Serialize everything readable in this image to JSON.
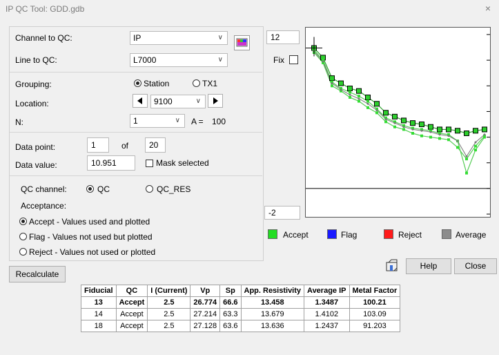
{
  "window": {
    "title": "IP QC Tool: GDD.gdb",
    "close_glyph": "×"
  },
  "channel": {
    "label": "Channel to QC:",
    "value": "IP"
  },
  "line": {
    "label": "Line to QC:",
    "value": "L7000"
  },
  "grouping": {
    "label": "Grouping:",
    "options": [
      "Station",
      "TX1"
    ],
    "selected": "Station"
  },
  "location": {
    "label": "Location:",
    "value": "9100"
  },
  "n": {
    "label": "N:",
    "value": "1",
    "a_text": "A =",
    "a_value": "100"
  },
  "data_point": {
    "label": "Data point:",
    "value": "1",
    "of_text": "of",
    "total": "20"
  },
  "data_value": {
    "label": "Data value:",
    "value": "10.951",
    "mask_label": "Mask selected"
  },
  "qc_channel": {
    "label": "QC channel:",
    "options": [
      "QC",
      "QC_RES"
    ],
    "selected": "QC"
  },
  "acceptance": {
    "label": "Acceptance:",
    "options": [
      "Accept - Values used and plotted",
      "Flag - Values not used but plotted",
      "Reject - Values not used or plotted"
    ],
    "selected": 0
  },
  "buttons": {
    "recalculate": "Recalculate",
    "help": "Help",
    "close": "Close"
  },
  "chart": {
    "ymax_value": "12",
    "ymin_value": "-2",
    "fix_label": "Fix"
  },
  "legend": [
    {
      "label": "Accept",
      "color": "#22dd22"
    },
    {
      "label": "Flag",
      "color": "#1a1aff"
    },
    {
      "label": "Reject",
      "color": "#ff1a1a"
    },
    {
      "label": "Average",
      "color": "#8c8c8c"
    }
  ],
  "table": {
    "headers": [
      "Fiducial",
      "QC",
      "I (Current)",
      "Vp",
      "Sp",
      "App. Resistivity",
      "Average IP",
      "Metal Factor"
    ],
    "rows": [
      [
        "13",
        "Accept",
        "2.5",
        "26.774",
        "66.6",
        "13.458",
        "1.3487",
        "100.21"
      ],
      [
        "14",
        "Accept",
        "2.5",
        "27.214",
        "63.3",
        "13.679",
        "1.4102",
        "103.09"
      ],
      [
        "18",
        "Accept",
        "2.5",
        "27.128",
        "63.6",
        "13.636",
        "1.2437",
        "91.203"
      ]
    ]
  },
  "chart_data": {
    "type": "line",
    "ylim": [
      -2,
      12
    ],
    "series": [
      {
        "values": [
          10.95,
          10.2,
          8.6,
          8.2,
          7.8,
          7.6,
          7.1,
          6.6,
          5.9,
          5.6,
          5.3,
          5.1,
          5.0,
          4.8,
          4.6,
          4.6,
          4.5,
          4.3,
          4.5,
          4.6
        ]
      },
      {
        "values": [
          10.8,
          10.0,
          8.3,
          7.8,
          7.5,
          7.2,
          6.8,
          6.2,
          5.5,
          5.2,
          4.9,
          4.7,
          4.6,
          4.5,
          4.3,
          4.2,
          3.7,
          1.2,
          3.0,
          4.0
        ]
      },
      {
        "values": [
          10.6,
          9.8,
          8.0,
          7.6,
          7.1,
          6.8,
          6.3,
          5.9,
          5.2,
          4.8,
          4.6,
          4.3,
          4.1,
          4.0,
          3.9,
          3.8,
          3.2,
          2.3,
          3.3,
          4.1
        ]
      },
      {
        "values": [
          10.7,
          9.9,
          8.2,
          7.7,
          7.3,
          7.0,
          6.6,
          6.1,
          5.4,
          5.1,
          4.8,
          4.6,
          4.5,
          4.4,
          4.2,
          4.1,
          3.7,
          2.5,
          3.6,
          4.2
        ]
      }
    ]
  }
}
